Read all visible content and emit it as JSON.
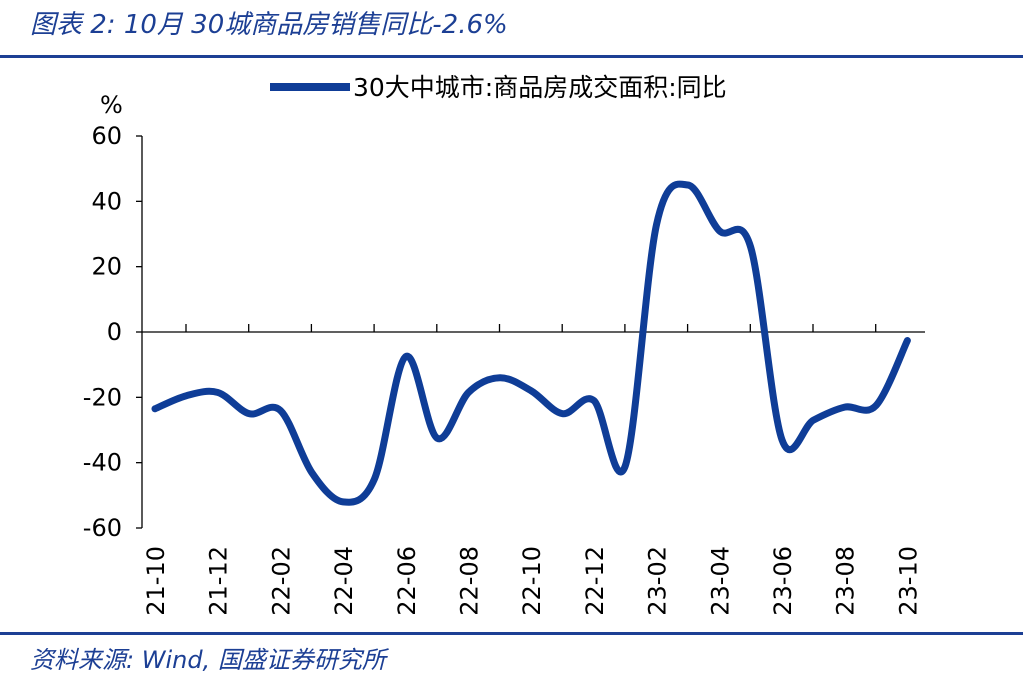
{
  "header": {
    "title": "图表 2:  10月 30城商品房销售同比-2.6%"
  },
  "footer": {
    "source": "资料来源:  Wind,  国盛证券研究所"
  },
  "colors": {
    "accent": "#1c3f94",
    "series": "#0f3d97"
  },
  "chart_data": {
    "type": "line",
    "ylabel": "%",
    "ylim": [
      -60,
      60
    ],
    "yticks": [
      60,
      40,
      20,
      0,
      -20,
      -40,
      -60
    ],
    "legend_position": "top",
    "grid": false,
    "x_tick_labels": [
      "21-10",
      "21-12",
      "22-02",
      "22-04",
      "22-06",
      "22-08",
      "22-10",
      "22-12",
      "23-02",
      "23-04",
      "23-06",
      "23-08",
      "23-10"
    ],
    "series": [
      {
        "name": "30大中城市:商品房成交面积:同比",
        "x": [
          "21-10",
          "21-11",
          "21-12",
          "22-01",
          "22-02",
          "22-03",
          "22-04",
          "22-05",
          "22-06",
          "22-07",
          "22-08",
          "22-09",
          "22-10",
          "22-11",
          "22-12",
          "23-01",
          "23-02",
          "23-03",
          "23-04",
          "23-05",
          "23-06",
          "23-07",
          "23-08",
          "23-09",
          "23-10"
        ],
        "values": [
          -23.5,
          -19.5,
          -18.5,
          -25,
          -24,
          -43,
          -52,
          -45,
          -7.5,
          -32.5,
          -18.5,
          -14,
          -18,
          -25,
          -21,
          -41,
          33,
          45,
          31,
          26,
          -33,
          -27,
          -23,
          -22.5,
          -2.6
        ]
      }
    ]
  }
}
